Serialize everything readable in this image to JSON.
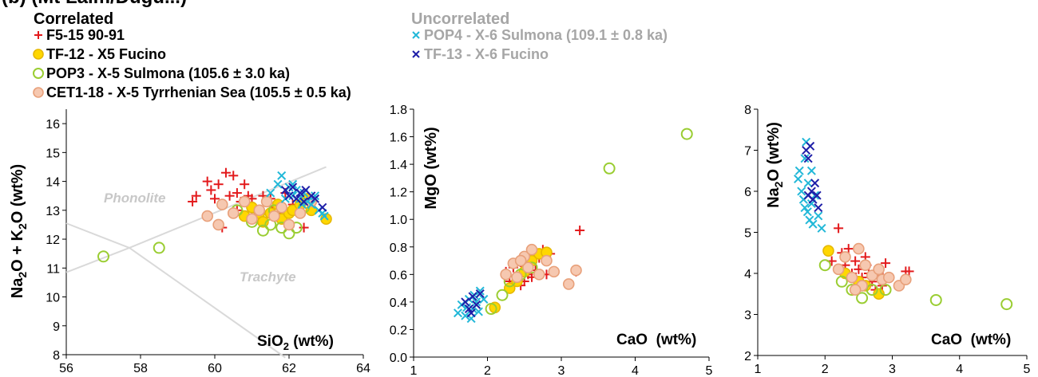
{
  "figure_label": "(b) (Mt Laim/Dugu...)",
  "legend": {
    "correlated_title": "Correlated",
    "uncorrelated_title": "Uncorrelated",
    "items": [
      {
        "label": "F5-15 90-91",
        "marker": "plus",
        "color": "#e31a1c",
        "group": "correlated"
      },
      {
        "label": "TF-12 - X5 Fucino",
        "marker": "circle-filled",
        "color": "#ffd700",
        "edge": "#e6b800",
        "group": "correlated"
      },
      {
        "label": "POP3 - X-5 Sulmona (105.6 ± 3.0 ka)",
        "marker": "circle-open",
        "color": "#9acd32",
        "group": "correlated"
      },
      {
        "label": "CET1-18 - X-5 Tyrrhenian Sea (105.5 ± 0.5 ka)",
        "marker": "circle-filled",
        "color": "#f6c8b0",
        "edge": "#e8a07a",
        "group": "correlated"
      },
      {
        "label": "POP4 - X-6 Sulmona (109.1 ± 0.8 ka)",
        "marker": "x",
        "color": "#22b8d8",
        "group": "uncorrelated"
      },
      {
        "label": "TF-13 - X-6 Fucino",
        "marker": "x",
        "color": "#1f1fa8",
        "group": "uncorrelated"
      }
    ],
    "uncorrelated_text_color": "#a6a6a6"
  },
  "chart_data": [
    {
      "type": "scatter",
      "title": "",
      "xlabel": "SiO2 (wt%)",
      "ylabel": "Na2O + K2O (wt%)",
      "xlim": [
        56,
        64
      ],
      "ylim": [
        8,
        16.5
      ],
      "xticks": [
        56,
        58,
        60,
        62,
        64
      ],
      "yticks": [
        8,
        9,
        10,
        11,
        12,
        13,
        14,
        15,
        16
      ],
      "field_labels": [
        "Phonolite",
        "Trachyte"
      ],
      "series": [
        {
          "name": "F5-15 90-91",
          "points": [
            [
              59.4,
              13.3
            ],
            [
              59.5,
              13.5
            ],
            [
              59.8,
              14.0
            ],
            [
              59.9,
              13.7
            ],
            [
              60.1,
              13.9
            ],
            [
              60.0,
              13.4
            ],
            [
              60.2,
              13.2
            ],
            [
              60.3,
              14.3
            ],
            [
              60.5,
              14.2
            ],
            [
              60.4,
              13.5
            ],
            [
              60.6,
              13.6
            ],
            [
              60.7,
              13.3
            ],
            [
              60.8,
              13.9
            ],
            [
              60.9,
              13.5
            ],
            [
              61.0,
              13.4
            ],
            [
              60.6,
              13.0
            ],
            [
              61.1,
              13.0
            ],
            [
              61.3,
              13.5
            ],
            [
              61.5,
              13.4
            ],
            [
              60.2,
              12.4
            ],
            [
              61.6,
              13.1
            ],
            [
              61.7,
              12.9
            ],
            [
              61.9,
              13.6
            ],
            [
              62.1,
              13.2
            ],
            [
              62.4,
              12.4
            ]
          ]
        },
        {
          "name": "TF-12 - X5 Fucino",
          "points": [
            [
              60.8,
              12.8
            ],
            [
              61.0,
              13.1
            ],
            [
              61.2,
              12.9
            ],
            [
              61.3,
              12.6
            ],
            [
              61.5,
              12.9
            ],
            [
              61.7,
              13.2
            ],
            [
              61.8,
              12.7
            ],
            [
              62.0,
              12.9
            ],
            [
              62.1,
              13.0
            ],
            [
              62.3,
              13.2
            ],
            [
              62.5,
              13.4
            ],
            [
              62.6,
              13.0
            ],
            [
              63.0,
              12.7
            ]
          ]
        },
        {
          "name": "POP3 - X-5 Sulmona (105.6 ± 3.0 ka)",
          "points": [
            [
              57.0,
              11.4
            ],
            [
              58.5,
              11.7
            ],
            [
              60.6,
              13.0
            ],
            [
              61.0,
              12.6
            ],
            [
              61.3,
              12.3
            ],
            [
              61.5,
              12.5
            ],
            [
              61.8,
              12.4
            ],
            [
              62.0,
              12.2
            ],
            [
              62.2,
              12.4
            ],
            [
              61.6,
              13.0
            ],
            [
              62.4,
              13.1
            ]
          ]
        },
        {
          "name": "CET1-18 - X-5 Tyrrhenian Sea (105.5 ± 0.5 ka)",
          "points": [
            [
              59.8,
              12.8
            ],
            [
              60.2,
              13.2
            ],
            [
              60.5,
              12.9
            ],
            [
              60.8,
              13.3
            ],
            [
              61.0,
              12.7
            ],
            [
              61.2,
              13.0
            ],
            [
              61.4,
              13.3
            ],
            [
              61.6,
              12.8
            ],
            [
              61.8,
              13.1
            ],
            [
              62.0,
              12.5
            ],
            [
              62.3,
              12.9
            ],
            [
              62.6,
              13.3
            ],
            [
              60.1,
              12.5
            ]
          ]
        },
        {
          "name": "POP4 - X-6 Sulmona (109.1 ± 0.8 ka)",
          "points": [
            [
              61.5,
              13.6
            ],
            [
              61.7,
              13.9
            ],
            [
              61.8,
              14.2
            ],
            [
              61.9,
              13.4
            ],
            [
              62.0,
              13.8
            ],
            [
              62.1,
              13.5
            ],
            [
              62.2,
              13.7
            ],
            [
              62.3,
              13.4
            ],
            [
              62.4,
              13.6
            ],
            [
              62.5,
              13.3
            ],
            [
              62.6,
              13.2
            ],
            [
              62.7,
              13.5
            ],
            [
              62.8,
              13.0
            ],
            [
              62.9,
              12.9
            ],
            [
              62.95,
              12.8
            ],
            [
              62.1,
              13.9
            ],
            [
              62.35,
              13.2
            ]
          ]
        },
        {
          "name": "TF-13 - X-6 Fucino",
          "points": [
            [
              61.9,
              13.7
            ],
            [
              62.0,
              13.5
            ],
            [
              62.1,
              13.8
            ],
            [
              62.2,
              13.4
            ],
            [
              62.3,
              13.6
            ],
            [
              62.4,
              13.3
            ],
            [
              62.45,
              13.7
            ],
            [
              62.6,
              13.5
            ],
            [
              62.7,
              13.4
            ],
            [
              62.9,
              13.1
            ]
          ]
        }
      ]
    },
    {
      "type": "scatter",
      "title": "",
      "xlabel": "CaO  (wt%)",
      "ylabel": "MgO (wt%)",
      "xlim": [
        1,
        5
      ],
      "ylim": [
        0,
        1.8
      ],
      "xticks": [
        1,
        2,
        3,
        4,
        5
      ],
      "yticks": [
        "0.0",
        "0.2",
        "0.4",
        "0.6",
        "0.8",
        "1.0",
        "1.2",
        "1.4",
        "1.6",
        "1.8"
      ],
      "series": [
        {
          "name": "F5-15 90-91",
          "points": [
            [
              2.25,
              0.62
            ],
            [
              2.3,
              0.55
            ],
            [
              2.35,
              0.65
            ],
            [
              2.4,
              0.58
            ],
            [
              2.45,
              0.61
            ],
            [
              2.5,
              0.66
            ],
            [
              2.5,
              0.55
            ],
            [
              2.55,
              0.6
            ],
            [
              2.6,
              0.68
            ],
            [
              2.65,
              0.63
            ],
            [
              2.7,
              0.72
            ],
            [
              2.75,
              0.78
            ],
            [
              2.8,
              0.6
            ],
            [
              2.85,
              0.75
            ],
            [
              2.45,
              0.52
            ],
            [
              2.6,
              0.58
            ],
            [
              3.25,
              0.92
            ],
            [
              3.2,
              0.62
            ]
          ]
        },
        {
          "name": "TF-12 - X5 Fucino",
          "points": [
            [
              2.1,
              0.36
            ],
            [
              2.3,
              0.5
            ],
            [
              2.4,
              0.55
            ],
            [
              2.5,
              0.62
            ],
            [
              2.6,
              0.7
            ],
            [
              2.7,
              0.75
            ],
            [
              2.8,
              0.76
            ]
          ]
        },
        {
          "name": "POP3 - X-5 Sulmona (105.6 ± 3.0 ka)",
          "points": [
            [
              2.05,
              0.35
            ],
            [
              2.2,
              0.45
            ],
            [
              2.3,
              0.55
            ],
            [
              2.45,
              0.6
            ],
            [
              2.6,
              0.65
            ],
            [
              3.65,
              1.37
            ],
            [
              4.7,
              1.62
            ]
          ]
        },
        {
          "name": "CET1-18 - X-5 Tyrrhenian Sea (105.5 ± 0.5 ka)",
          "points": [
            [
              2.25,
              0.6
            ],
            [
              2.35,
              0.68
            ],
            [
              2.4,
              0.58
            ],
            [
              2.5,
              0.73
            ],
            [
              2.55,
              0.65
            ],
            [
              2.6,
              0.78
            ],
            [
              2.7,
              0.6
            ],
            [
              2.8,
              0.7
            ],
            [
              2.9,
              0.62
            ],
            [
              3.1,
              0.53
            ],
            [
              3.2,
              0.63
            ],
            [
              2.45,
              0.7
            ]
          ]
        },
        {
          "name": "POP4 - X-6 Sulmona (109.1 ± 0.8 ka)",
          "points": [
            [
              1.6,
              0.32
            ],
            [
              1.65,
              0.38
            ],
            [
              1.7,
              0.3
            ],
            [
              1.75,
              0.42
            ],
            [
              1.8,
              0.35
            ],
            [
              1.82,
              0.45
            ],
            [
              1.85,
              0.4
            ],
            [
              1.9,
              0.48
            ],
            [
              1.95,
              0.42
            ],
            [
              1.72,
              0.36
            ],
            [
              1.88,
              0.33
            ],
            [
              1.78,
              0.28
            ]
          ]
        },
        {
          "name": "TF-13 - X-6 Fucino",
          "points": [
            [
              1.7,
              0.4
            ],
            [
              1.75,
              0.35
            ],
            [
              1.8,
              0.44
            ],
            [
              1.85,
              0.38
            ],
            [
              1.9,
              0.46
            ],
            [
              1.78,
              0.32
            ]
          ]
        }
      ]
    },
    {
      "type": "scatter",
      "title": "",
      "xlabel": "CaO  (wt%)",
      "ylabel": "Na2O (wt%)",
      "xlim": [
        1,
        5
      ],
      "ylim": [
        2,
        8
      ],
      "xticks": [
        1,
        2,
        3,
        4,
        5
      ],
      "yticks": [
        2,
        3,
        4,
        5,
        6,
        7,
        8
      ],
      "series": [
        {
          "name": "F5-15 90-91",
          "points": [
            [
              2.1,
              4.3
            ],
            [
              2.2,
              5.1
            ],
            [
              2.25,
              4.5
            ],
            [
              2.3,
              4.2
            ],
            [
              2.35,
              4.6
            ],
            [
              2.4,
              4.0
            ],
            [
              2.45,
              4.3
            ],
            [
              2.5,
              4.1
            ],
            [
              2.55,
              3.9
            ],
            [
              2.6,
              4.4
            ],
            [
              2.62,
              4.2
            ],
            [
              2.65,
              4.0
            ],
            [
              2.7,
              3.8
            ],
            [
              2.75,
              3.6
            ],
            [
              2.8,
              4.0
            ],
            [
              2.85,
              3.7
            ],
            [
              2.9,
              4.25
            ],
            [
              3.2,
              4.05
            ],
            [
              3.25,
              4.05
            ]
          ]
        },
        {
          "name": "TF-12 - X5 Fucino",
          "points": [
            [
              2.05,
              4.55
            ],
            [
              2.3,
              4.0
            ],
            [
              2.5,
              3.8
            ],
            [
              2.6,
              3.7
            ],
            [
              2.8,
              3.5
            ]
          ]
        },
        {
          "name": "POP3 - X-5 Sulmona (105.6 ± 3.0 ka)",
          "points": [
            [
              2.0,
              4.2
            ],
            [
              2.25,
              3.8
            ],
            [
              2.4,
              3.6
            ],
            [
              2.55,
              3.4
            ],
            [
              2.7,
              3.6
            ],
            [
              2.9,
              3.6
            ],
            [
              3.65,
              3.35
            ],
            [
              4.7,
              3.25
            ]
          ]
        },
        {
          "name": "CET1-18 - X-5 Tyrrhenian Sea (105.5 ± 0.5 ka)",
          "points": [
            [
              2.2,
              4.1
            ],
            [
              2.3,
              4.4
            ],
            [
              2.4,
              3.9
            ],
            [
              2.5,
              4.6
            ],
            [
              2.55,
              3.7
            ],
            [
              2.6,
              4.2
            ],
            [
              2.7,
              3.95
            ],
            [
              2.8,
              4.1
            ],
            [
              2.85,
              3.85
            ],
            [
              2.95,
              3.9
            ],
            [
              3.1,
              3.7
            ],
            [
              3.2,
              3.85
            ],
            [
              2.45,
              3.6
            ]
          ]
        },
        {
          "name": "POP4 - X-6 Sulmona (109.1 ± 0.8 ka)",
          "points": [
            [
              1.6,
              6.3
            ],
            [
              1.62,
              6.5
            ],
            [
              1.65,
              6.0
            ],
            [
              1.68,
              5.8
            ],
            [
              1.7,
              6.8
            ],
            [
              1.72,
              7.2
            ],
            [
              1.74,
              5.5
            ],
            [
              1.75,
              6.2
            ],
            [
              1.77,
              5.3
            ],
            [
              1.8,
              5.7
            ],
            [
              1.82,
              5.2
            ],
            [
              1.85,
              5.9
            ],
            [
              1.9,
              5.4
            ],
            [
              1.95,
              5.1
            ],
            [
              1.7,
              5.6
            ],
            [
              1.8,
              6.5
            ]
          ]
        },
        {
          "name": "TF-13 - X-6 Fucino",
          "points": [
            [
              1.72,
              7.0
            ],
            [
              1.75,
              6.8
            ],
            [
              1.78,
              7.1
            ],
            [
              1.8,
              6.0
            ],
            [
              1.82,
              5.8
            ],
            [
              1.85,
              6.2
            ],
            [
              1.88,
              5.9
            ],
            [
              1.9,
              5.6
            ],
            [
              1.75,
              5.9
            ]
          ]
        }
      ]
    }
  ]
}
